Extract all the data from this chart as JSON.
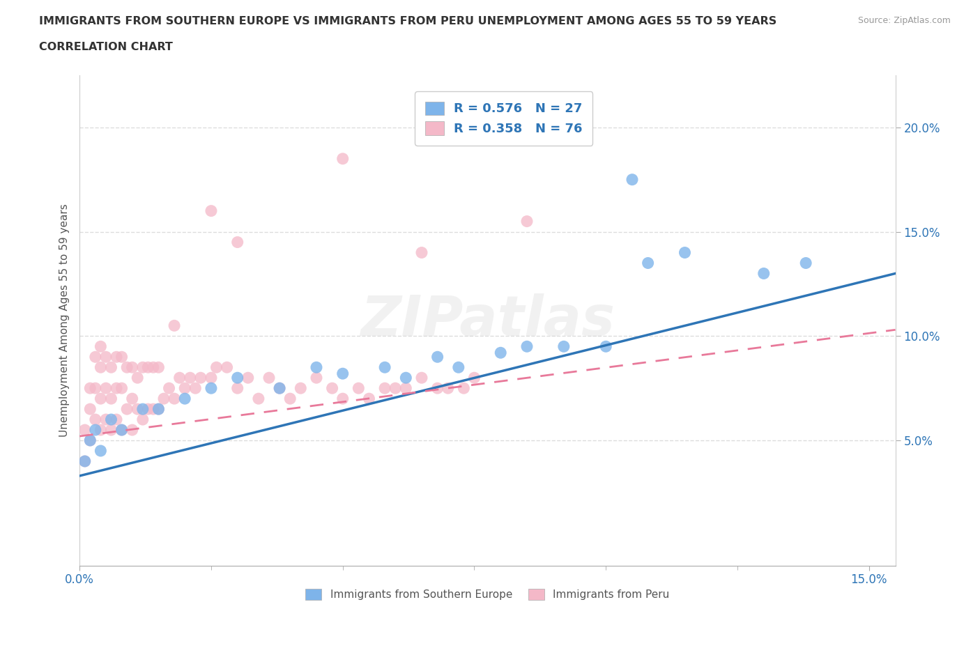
{
  "title_line1": "IMMIGRANTS FROM SOUTHERN EUROPE VS IMMIGRANTS FROM PERU UNEMPLOYMENT AMONG AGES 55 TO 59 YEARS",
  "title_line2": "CORRELATION CHART",
  "source": "Source: ZipAtlas.com",
  "ylabel": "Unemployment Among Ages 55 to 59 years",
  "xlim": [
    0.0,
    0.155
  ],
  "ylim": [
    -0.01,
    0.225
  ],
  "ytick_positions": [
    0.05,
    0.1,
    0.15,
    0.2
  ],
  "ytick_labels": [
    "5.0%",
    "10.0%",
    "15.0%",
    "20.0%"
  ],
  "xtick_positions": [
    0.0,
    0.15
  ],
  "xtick_labels": [
    "0.0%",
    "15.0%"
  ],
  "color_southern": "#7eb4ea",
  "color_peru": "#f4b8c8",
  "color_southern_line": "#2e75b6",
  "color_peru_line": "#e8799a",
  "R_southern": 0.576,
  "N_southern": 27,
  "R_peru": 0.358,
  "N_peru": 76,
  "se_x": [
    0.001,
    0.002,
    0.003,
    0.004,
    0.006,
    0.008,
    0.012,
    0.015,
    0.02,
    0.025,
    0.03,
    0.038,
    0.045,
    0.05,
    0.058,
    0.062,
    0.068,
    0.072,
    0.08,
    0.085,
    0.092,
    0.1,
    0.105,
    0.108,
    0.115,
    0.13,
    0.138
  ],
  "se_y": [
    0.04,
    0.05,
    0.055,
    0.045,
    0.06,
    0.055,
    0.065,
    0.065,
    0.07,
    0.075,
    0.08,
    0.075,
    0.085,
    0.082,
    0.085,
    0.08,
    0.09,
    0.085,
    0.092,
    0.095,
    0.095,
    0.095,
    0.175,
    0.135,
    0.14,
    0.13,
    0.135
  ],
  "pe_x": [
    0.001,
    0.001,
    0.002,
    0.002,
    0.002,
    0.003,
    0.003,
    0.003,
    0.004,
    0.004,
    0.004,
    0.004,
    0.005,
    0.005,
    0.005,
    0.006,
    0.006,
    0.006,
    0.007,
    0.007,
    0.007,
    0.008,
    0.008,
    0.008,
    0.009,
    0.009,
    0.01,
    0.01,
    0.01,
    0.011,
    0.011,
    0.012,
    0.012,
    0.013,
    0.013,
    0.014,
    0.014,
    0.015,
    0.015,
    0.016,
    0.017,
    0.018,
    0.019,
    0.02,
    0.021,
    0.022,
    0.023,
    0.025,
    0.026,
    0.028,
    0.03,
    0.032,
    0.034,
    0.036,
    0.038,
    0.04,
    0.042,
    0.045,
    0.048,
    0.05,
    0.053,
    0.055,
    0.058,
    0.06,
    0.062,
    0.065,
    0.068,
    0.07,
    0.073,
    0.075,
    0.05,
    0.065,
    0.085,
    0.025,
    0.03,
    0.018
  ],
  "pe_y": [
    0.04,
    0.055,
    0.065,
    0.05,
    0.075,
    0.06,
    0.075,
    0.09,
    0.055,
    0.07,
    0.085,
    0.095,
    0.06,
    0.075,
    0.09,
    0.055,
    0.07,
    0.085,
    0.06,
    0.075,
    0.09,
    0.055,
    0.075,
    0.09,
    0.065,
    0.085,
    0.055,
    0.07,
    0.085,
    0.065,
    0.08,
    0.06,
    0.085,
    0.065,
    0.085,
    0.065,
    0.085,
    0.065,
    0.085,
    0.07,
    0.075,
    0.07,
    0.08,
    0.075,
    0.08,
    0.075,
    0.08,
    0.08,
    0.085,
    0.085,
    0.075,
    0.08,
    0.07,
    0.08,
    0.075,
    0.07,
    0.075,
    0.08,
    0.075,
    0.07,
    0.075,
    0.07,
    0.075,
    0.075,
    0.075,
    0.08,
    0.075,
    0.075,
    0.075,
    0.08,
    0.185,
    0.14,
    0.155,
    0.16,
    0.145,
    0.105
  ],
  "se_line_x": [
    0.0,
    0.155
  ],
  "se_line_y": [
    0.033,
    0.13
  ],
  "pe_line_x": [
    0.0,
    0.155
  ],
  "pe_line_y": [
    0.052,
    0.103
  ],
  "background_color": "#ffffff",
  "grid_color": "#dddddd",
  "watermark": "ZIPatlas"
}
